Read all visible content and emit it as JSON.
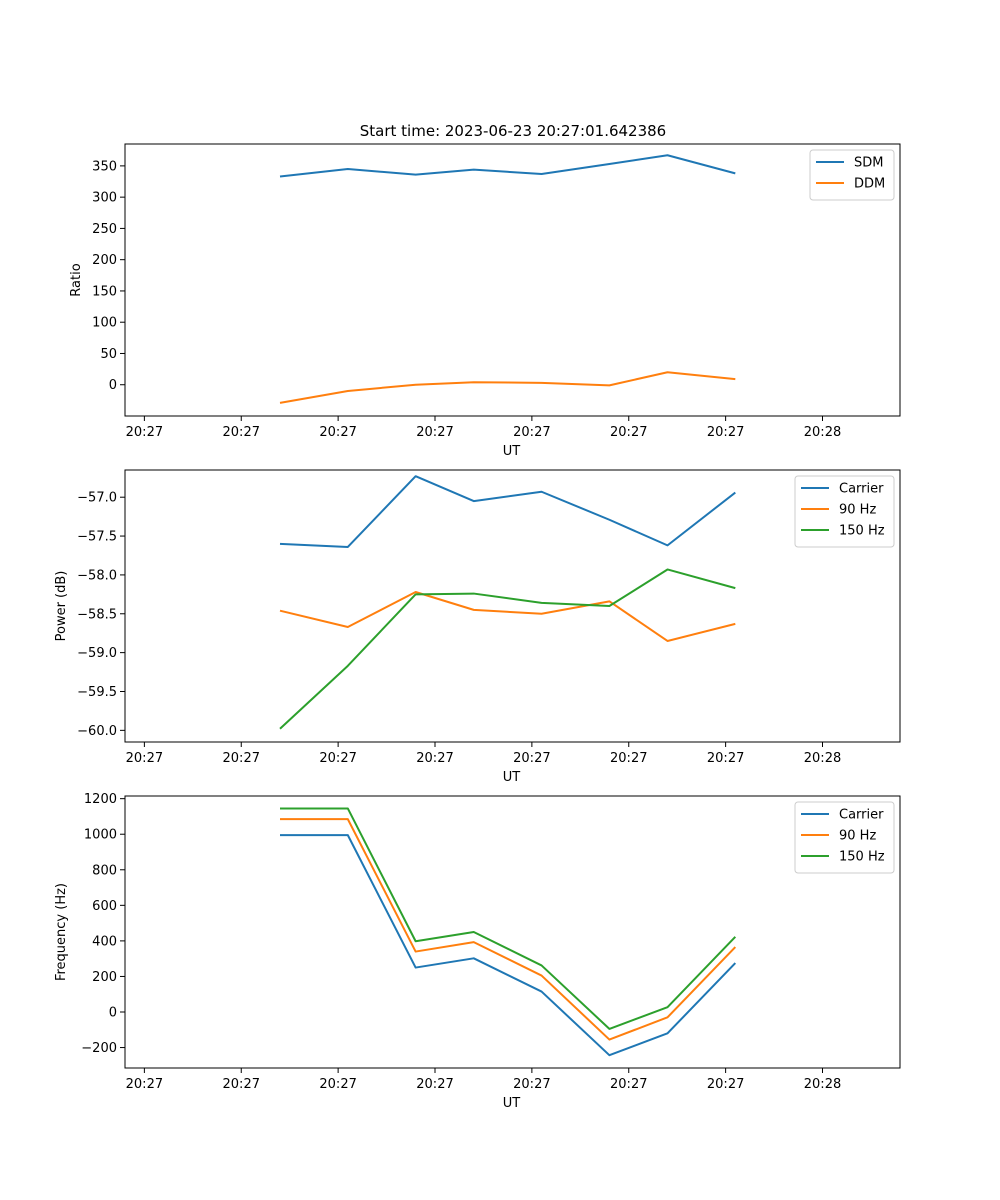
{
  "figure": {
    "title": "Start time: 2023-06-23 20:27:01.642386"
  },
  "chart_data": [
    {
      "type": "line",
      "title": "Start time: 2023-06-23 20:27:01.642386",
      "xlabel": "UT",
      "ylabel": "Ratio",
      "x": [
        1.6,
        2.3,
        3.0,
        3.6,
        4.3,
        5.0,
        5.6,
        6.3
      ],
      "xlim": [
        0,
        8
      ],
      "xticks": [
        0.2,
        1.2,
        2.2,
        3.2,
        4.2,
        5.2,
        6.2,
        7.2
      ],
      "xtick_labels": [
        "20:27",
        "20:27",
        "20:27",
        "20:27",
        "20:27",
        "20:27",
        "20:27",
        "20:28"
      ],
      "ylim": [
        -50,
        385
      ],
      "yticks": [
        0,
        50,
        100,
        150,
        200,
        250,
        300,
        350
      ],
      "ytick_labels": [
        "0",
        "50",
        "100",
        "150",
        "200",
        "250",
        "300",
        "350"
      ],
      "legend_position": "upper right",
      "grid": false,
      "series": [
        {
          "name": "SDM",
          "color": "#1f77b4",
          "values": [
            333,
            345,
            336,
            344,
            337,
            353,
            367,
            338
          ]
        },
        {
          "name": "DDM",
          "color": "#ff7f0e",
          "values": [
            -29,
            -10,
            0,
            4,
            3,
            -1,
            20,
            9
          ]
        }
      ]
    },
    {
      "type": "line",
      "title": "",
      "xlabel": "UT",
      "ylabel": "Power (dB)",
      "x": [
        1.6,
        2.3,
        3.0,
        3.6,
        4.3,
        5.0,
        5.6,
        6.3
      ],
      "xlim": [
        0,
        8
      ],
      "xticks": [
        0.2,
        1.2,
        2.2,
        3.2,
        4.2,
        5.2,
        6.2,
        7.2
      ],
      "xtick_labels": [
        "20:27",
        "20:27",
        "20:27",
        "20:27",
        "20:27",
        "20:27",
        "20:27",
        "20:28"
      ],
      "ylim": [
        -60.15,
        -56.65
      ],
      "yticks": [
        -57.0,
        -57.5,
        -58.0,
        -58.5,
        -59.0,
        -59.5,
        -60.0
      ],
      "ytick_labels": [
        "−57.0",
        "−57.5",
        "−58.0",
        "−58.5",
        "−59.0",
        "−59.5",
        "−60.0"
      ],
      "legend_position": "upper right",
      "grid": false,
      "series": [
        {
          "name": "Carrier",
          "color": "#1f77b4",
          "values": [
            -57.6,
            -57.64,
            -56.73,
            -57.05,
            -56.93,
            -57.29,
            -57.62,
            -56.94
          ]
        },
        {
          "name": "90 Hz",
          "color": "#ff7f0e",
          "values": [
            -58.46,
            -58.67,
            -58.22,
            -58.45,
            -58.5,
            -58.34,
            -58.85,
            -58.63
          ]
        },
        {
          "name": "150 Hz",
          "color": "#2ca02c",
          "values": [
            -59.98,
            -59.17,
            -58.25,
            -58.24,
            -58.36,
            -58.4,
            -57.93,
            -58.17
          ]
        }
      ]
    },
    {
      "type": "line",
      "title": "",
      "xlabel": "UT",
      "ylabel": "Frequency (Hz)",
      "x": [
        1.6,
        2.3,
        3.0,
        3.6,
        4.3,
        5.0,
        5.6,
        6.3
      ],
      "xlim": [
        0,
        8
      ],
      "xticks": [
        0.2,
        1.2,
        2.2,
        3.2,
        4.2,
        5.2,
        6.2,
        7.2
      ],
      "xtick_labels": [
        "20:27",
        "20:27",
        "20:27",
        "20:27",
        "20:27",
        "20:27",
        "20:27",
        "20:28"
      ],
      "ylim": [
        -315,
        1215
      ],
      "yticks": [
        -200,
        0,
        200,
        400,
        600,
        800,
        1000,
        1200
      ],
      "ytick_labels": [
        "−200",
        "0",
        "200",
        "400",
        "600",
        "800",
        "1000",
        "1200"
      ],
      "legend_position": "upper right",
      "grid": false,
      "series": [
        {
          "name": "Carrier",
          "color": "#1f77b4",
          "values": [
            995,
            995,
            250,
            302,
            115,
            -243,
            -120,
            275
          ]
        },
        {
          "name": "90 Hz",
          "color": "#ff7f0e",
          "values": [
            1085,
            1085,
            340,
            393,
            205,
            -155,
            -30,
            365
          ]
        },
        {
          "name": "150 Hz",
          "color": "#2ca02c",
          "values": [
            1145,
            1145,
            398,
            450,
            262,
            -95,
            27,
            423
          ]
        }
      ]
    }
  ]
}
